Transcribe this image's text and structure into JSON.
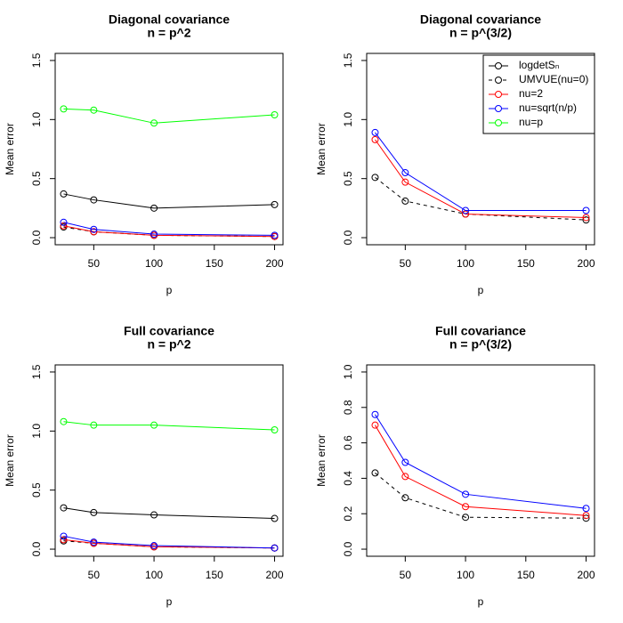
{
  "chart_data": [
    {
      "type": "line",
      "title": "Diagonal covariance",
      "subtitle": "n = p^2",
      "x_label": "p",
      "y_label": "Mean error",
      "x": [
        25,
        50,
        100,
        200
      ],
      "xlim": [
        18,
        207
      ],
      "xticks": [
        50,
        100,
        150,
        200
      ],
      "ylim": [
        -0.06,
        1.56
      ],
      "yticks": [
        {
          "value": 0,
          "label": "0.0"
        },
        0.5,
        {
          "value": 1,
          "label": "1.0"
        },
        1.5
      ],
      "series": [
        {
          "color": "#000000",
          "dash": false,
          "values": [
            0.37,
            0.32,
            0.25,
            0.28
          ]
        },
        {
          "color": "#000000",
          "dash": true,
          "values": [
            0.09,
            0.05,
            0.02,
            0.01
          ]
        },
        {
          "color": "#ff0000",
          "dash": false,
          "values": [
            0.1,
            0.05,
            0.02,
            0.01
          ]
        },
        {
          "color": "#0000ff",
          "dash": false,
          "values": [
            0.13,
            0.07,
            0.03,
            0.02
          ]
        },
        {
          "color": "#00ff00",
          "dash": false,
          "values": [
            1.09,
            1.08,
            0.97,
            1.04
          ]
        }
      ]
    },
    {
      "type": "line",
      "title": "Diagonal covariance",
      "subtitle": "n = p^(3/2)",
      "x_label": "p",
      "y_label": "Mean error",
      "x": [
        25,
        50,
        100,
        200
      ],
      "xlim": [
        18,
        207
      ],
      "xticks": [
        50,
        100,
        150,
        200
      ],
      "ylim": [
        -0.06,
        1.56
      ],
      "yticks": [
        {
          "value": 0,
          "label": "0.0"
        },
        0.5,
        {
          "value": 1,
          "label": "1.0"
        },
        1.5
      ],
      "legend": "topright",
      "series": [
        {
          "name": "logdetSₙ",
          "color": "#000000",
          "dash": false,
          "values": [
            null,
            null,
            null,
            null
          ]
        },
        {
          "name": "UMVUE(nu=0)",
          "color": "#000000",
          "dash": true,
          "values": [
            0.51,
            0.31,
            0.2,
            0.15
          ]
        },
        {
          "name": "nu=2",
          "color": "#ff0000",
          "dash": false,
          "values": [
            0.83,
            0.47,
            0.2,
            0.17
          ]
        },
        {
          "name": "nu=sqrt(n/p)",
          "color": "#0000ff",
          "dash": false,
          "values": [
            0.89,
            0.55,
            0.23,
            0.23
          ]
        },
        {
          "name": "nu=p",
          "color": "#00ff00",
          "dash": false,
          "values": [
            null,
            null,
            null,
            null
          ]
        }
      ]
    },
    {
      "type": "line",
      "title": "Full covariance",
      "subtitle": "n = p^2",
      "x_label": "p",
      "y_label": "Mean error",
      "x": [
        25,
        50,
        100,
        200
      ],
      "xlim": [
        18,
        207
      ],
      "xticks": [
        50,
        100,
        150,
        200
      ],
      "ylim": [
        -0.06,
        1.56
      ],
      "yticks": [
        {
          "value": 0,
          "label": "0.0"
        },
        0.5,
        {
          "value": 1,
          "label": "1.0"
        },
        1.5
      ],
      "series": [
        {
          "color": "#000000",
          "dash": false,
          "values": [
            0.35,
            0.31,
            0.29,
            0.26
          ]
        },
        {
          "color": "#000000",
          "dash": true,
          "values": [
            0.07,
            0.05,
            0.02,
            0.01
          ]
        },
        {
          "color": "#ff0000",
          "dash": false,
          "values": [
            0.08,
            0.05,
            0.02,
            0.01
          ]
        },
        {
          "color": "#0000ff",
          "dash": false,
          "values": [
            0.11,
            0.06,
            0.03,
            0.01
          ]
        },
        {
          "color": "#00ff00",
          "dash": false,
          "values": [
            1.08,
            1.05,
            1.05,
            1.01
          ]
        }
      ]
    },
    {
      "type": "line",
      "title": "Full covariance",
      "subtitle": "n = p^(3/2)",
      "x_label": "p",
      "y_label": "Mean error",
      "x": [
        25,
        50,
        100,
        200
      ],
      "xlim": [
        18,
        207
      ],
      "xticks": [
        50,
        100,
        150,
        200
      ],
      "ylim": [
        -0.04,
        1.04
      ],
      "yticks": [
        {
          "value": 0,
          "label": "0.0"
        },
        0.2,
        0.4,
        0.6,
        0.8,
        {
          "value": 1,
          "label": "1.0"
        }
      ],
      "series": [
        {
          "color": "#000000",
          "dash": true,
          "values": [
            0.43,
            0.29,
            0.18,
            0.175
          ]
        },
        {
          "color": "#ff0000",
          "dash": false,
          "values": [
            0.7,
            0.41,
            0.24,
            0.19
          ]
        },
        {
          "color": "#0000ff",
          "dash": false,
          "values": [
            0.76,
            0.49,
            0.31,
            0.23
          ]
        }
      ]
    }
  ]
}
